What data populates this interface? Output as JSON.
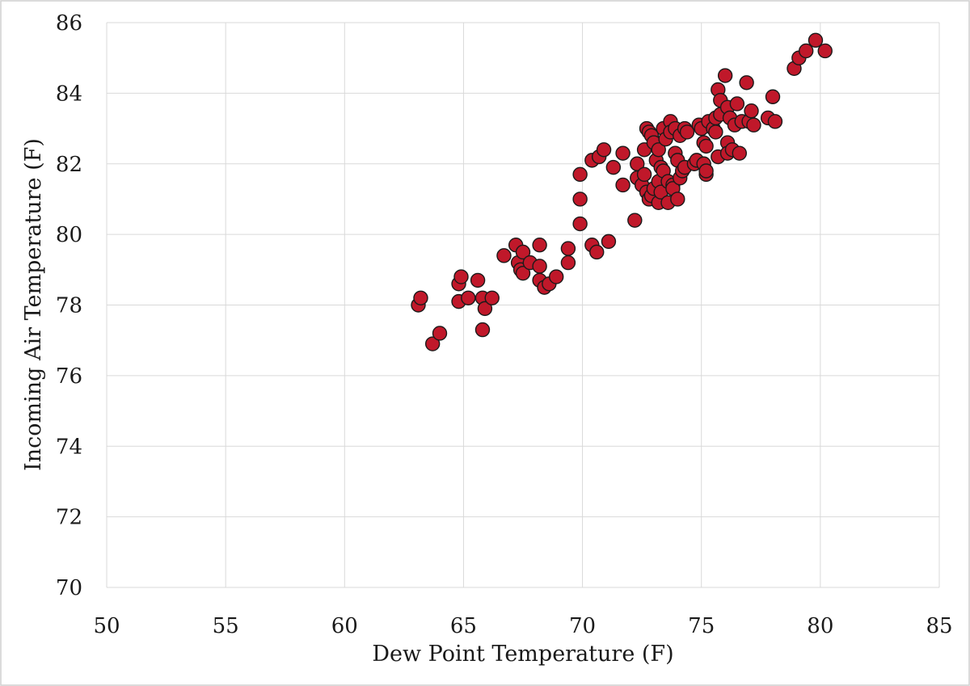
{
  "chart_data": {
    "type": "scatter",
    "title": "",
    "xlabel": "Dew Point Temperature (F)",
    "ylabel": "Incoming Air Temperature (F)",
    "xlim": [
      50,
      85
    ],
    "ylim": [
      70,
      86
    ],
    "x_ticks": [
      50,
      55,
      60,
      65,
      70,
      75,
      80,
      85
    ],
    "y_ticks": [
      70,
      72,
      74,
      76,
      78,
      80,
      82,
      84,
      86
    ],
    "x_tick_labels": [
      "50",
      "55",
      "60",
      "65",
      "70",
      "75",
      "80",
      "85"
    ],
    "y_tick_labels": [
      "70",
      "72",
      "74",
      "76",
      "78",
      "80",
      "82",
      "84",
      "86"
    ],
    "grid": true,
    "marker_color": "#c0182a",
    "marker_edge_color": "#1a1a1a",
    "series": [
      {
        "points": [
          [
            63.1,
            78.0
          ],
          [
            63.2,
            78.2
          ],
          [
            63.7,
            76.9
          ],
          [
            64.0,
            77.2
          ],
          [
            64.8,
            78.6
          ],
          [
            64.9,
            78.8
          ],
          [
            64.8,
            78.1
          ],
          [
            65.2,
            78.2
          ],
          [
            65.6,
            78.7
          ],
          [
            65.8,
            78.2
          ],
          [
            65.9,
            77.9
          ],
          [
            65.8,
            77.3
          ],
          [
            66.2,
            78.2
          ],
          [
            66.7,
            79.4
          ],
          [
            67.2,
            79.7
          ],
          [
            67.3,
            79.2
          ],
          [
            67.5,
            79.5
          ],
          [
            67.4,
            79.0
          ],
          [
            67.5,
            78.9
          ],
          [
            67.8,
            79.2
          ],
          [
            68.2,
            79.7
          ],
          [
            68.2,
            79.1
          ],
          [
            68.2,
            78.7
          ],
          [
            68.4,
            78.5
          ],
          [
            68.6,
            78.6
          ],
          [
            68.9,
            78.8
          ],
          [
            69.4,
            79.6
          ],
          [
            69.4,
            79.2
          ],
          [
            69.9,
            81.7
          ],
          [
            69.9,
            81.0
          ],
          [
            69.9,
            80.3
          ],
          [
            70.4,
            82.1
          ],
          [
            70.4,
            79.7
          ],
          [
            70.6,
            79.5
          ],
          [
            70.7,
            82.2
          ],
          [
            70.9,
            82.4
          ],
          [
            71.1,
            79.8
          ],
          [
            71.3,
            81.9
          ],
          [
            71.7,
            82.3
          ],
          [
            71.7,
            81.4
          ],
          [
            72.2,
            80.4
          ],
          [
            72.3,
            82.0
          ],
          [
            72.3,
            81.6
          ],
          [
            72.5,
            81.4
          ],
          [
            72.6,
            82.4
          ],
          [
            72.6,
            81.7
          ],
          [
            72.7,
            81.2
          ],
          [
            72.7,
            83.0
          ],
          [
            72.8,
            82.9
          ],
          [
            72.9,
            82.8
          ],
          [
            72.8,
            81.0
          ],
          [
            72.9,
            81.1
          ],
          [
            73.0,
            82.6
          ],
          [
            73.0,
            81.3
          ],
          [
            73.1,
            82.1
          ],
          [
            73.2,
            81.5
          ],
          [
            73.2,
            82.4
          ],
          [
            73.2,
            80.9
          ],
          [
            73.3,
            81.2
          ],
          [
            73.3,
            81.9
          ],
          [
            73.4,
            81.8
          ],
          [
            73.4,
            83.0
          ],
          [
            73.5,
            82.7
          ],
          [
            73.6,
            81.5
          ],
          [
            73.6,
            80.9
          ],
          [
            73.7,
            83.2
          ],
          [
            73.7,
            82.9
          ],
          [
            73.8,
            81.4
          ],
          [
            73.8,
            81.3
          ],
          [
            73.9,
            82.3
          ],
          [
            73.9,
            83.0
          ],
          [
            74.0,
            81.0
          ],
          [
            74.0,
            82.1
          ],
          [
            74.1,
            81.6
          ],
          [
            74.1,
            82.8
          ],
          [
            74.2,
            81.8
          ],
          [
            74.3,
            83.0
          ],
          [
            74.3,
            81.9
          ],
          [
            74.4,
            82.9
          ],
          [
            74.7,
            82.0
          ],
          [
            74.8,
            82.1
          ],
          [
            74.9,
            83.1
          ],
          [
            75.0,
            83.0
          ],
          [
            75.1,
            82.6
          ],
          [
            75.1,
            82.0
          ],
          [
            75.2,
            81.7
          ],
          [
            75.2,
            81.8
          ],
          [
            75.2,
            82.5
          ],
          [
            75.3,
            83.2
          ],
          [
            75.5,
            83.0
          ],
          [
            75.6,
            82.9
          ],
          [
            75.6,
            83.3
          ],
          [
            75.7,
            82.2
          ],
          [
            75.7,
            84.1
          ],
          [
            75.8,
            83.8
          ],
          [
            75.8,
            83.4
          ],
          [
            76.0,
            84.5
          ],
          [
            76.1,
            82.6
          ],
          [
            76.1,
            82.3
          ],
          [
            76.1,
            83.6
          ],
          [
            76.2,
            83.3
          ],
          [
            76.3,
            82.4
          ],
          [
            76.4,
            83.1
          ],
          [
            76.5,
            83.7
          ],
          [
            76.6,
            82.3
          ],
          [
            76.7,
            83.2
          ],
          [
            76.9,
            84.3
          ],
          [
            77.0,
            83.2
          ],
          [
            77.1,
            83.5
          ],
          [
            77.2,
            83.1
          ],
          [
            77.8,
            83.3
          ],
          [
            78.0,
            83.9
          ],
          [
            78.1,
            83.2
          ],
          [
            78.9,
            84.7
          ],
          [
            79.1,
            85.0
          ],
          [
            79.4,
            85.2
          ],
          [
            79.8,
            85.5
          ],
          [
            80.2,
            85.2
          ]
        ]
      }
    ]
  }
}
